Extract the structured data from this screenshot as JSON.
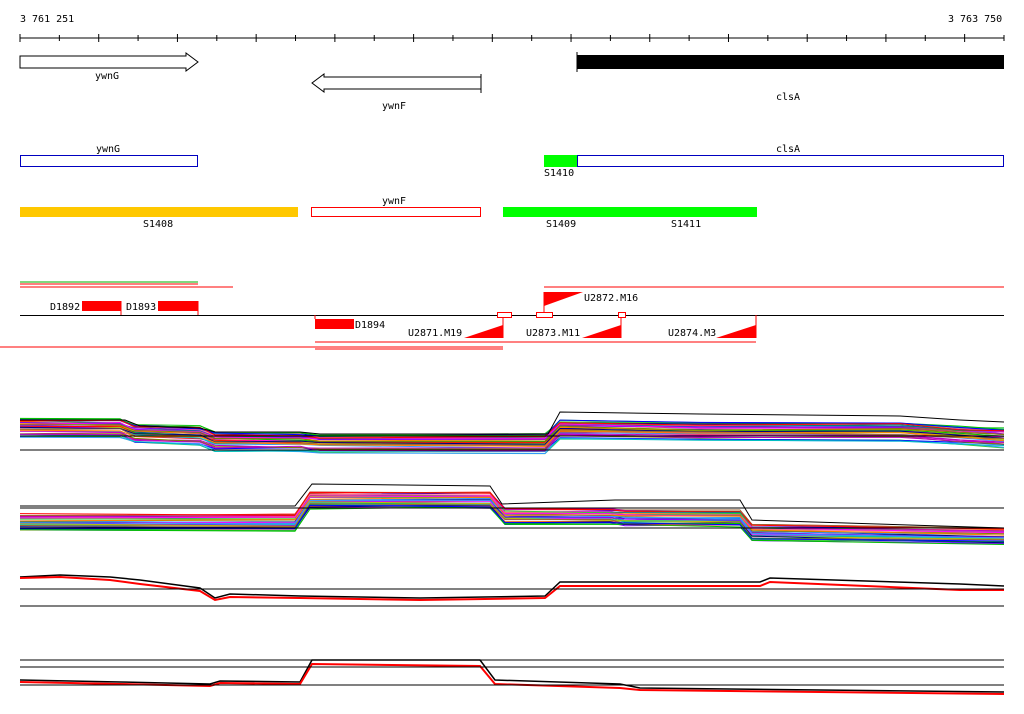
{
  "ruler": {
    "start_label": "3 761 251",
    "end_label": "3 763 750",
    "start_bp": 3761251,
    "end_bp": 3763750
  },
  "genes": {
    "ywnG": "ywnG",
    "ywnF": "ywnF",
    "clsA": "clsA"
  },
  "cds_track": {
    "ywnG": "ywnG",
    "clsA": "clsA",
    "s1410": "S1410"
  },
  "segments": {
    "s1408": "S1408",
    "ywnF": "ywnF",
    "s1409": "S1409",
    "s1411": "S1411"
  },
  "features": {
    "d1892": "D1892",
    "d1893": "D1893",
    "d1894": "D1894",
    "u2871": "U2871.M19",
    "u2872": "U2872.M16",
    "u2873": "U2873.M11",
    "u2874": "U2874.M3"
  },
  "colors": {
    "orange": "#ffc800",
    "green": "#00ff00",
    "red": "#ff0000",
    "blue": "#0000c0",
    "black": "#000000"
  }
}
